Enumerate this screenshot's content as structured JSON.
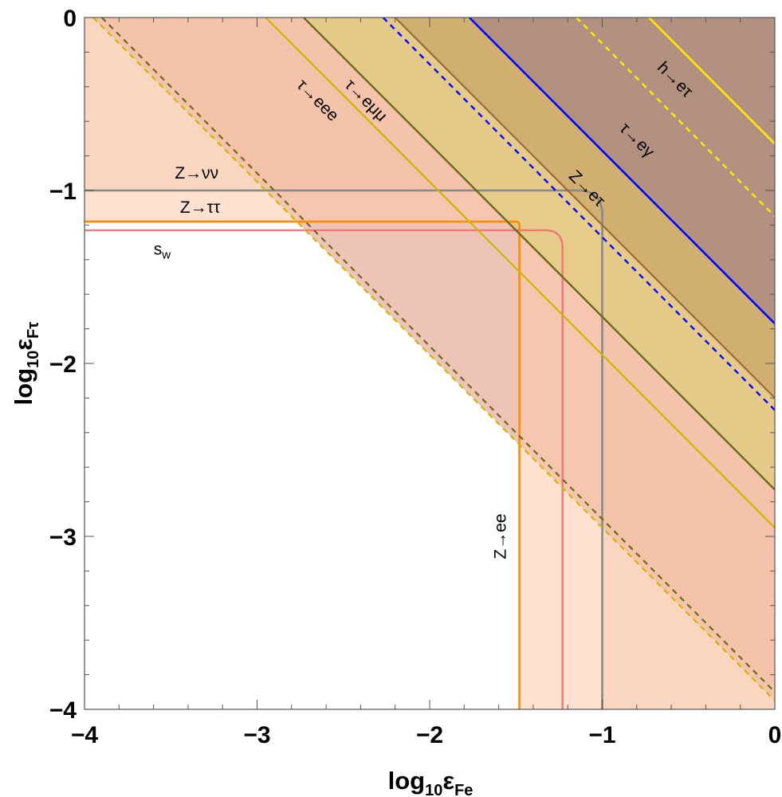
{
  "chart_data": {
    "type": "area",
    "x_label": "log₁₀εFe",
    "x_label_main": "log",
    "x_label_sub": "10",
    "x_label_eps": "ε",
    "x_label_eps_sub": "Fe",
    "y_label_main": "log",
    "y_label_sub": "10",
    "y_label_eps": "ε",
    "y_label_eps_sub": "Fτ",
    "xlim": [
      -4,
      0
    ],
    "ylim": [
      -4,
      0
    ],
    "x_ticks": [
      {
        "value": -4,
        "label": "−4"
      },
      {
        "value": -3,
        "label": "−3"
      },
      {
        "value": -2,
        "label": "−2"
      },
      {
        "value": -1,
        "label": "−1"
      },
      {
        "value": 0,
        "label": "0"
      }
    ],
    "y_ticks": [
      {
        "value": 0,
        "label": "0"
      },
      {
        "value": -1,
        "label": "−1"
      },
      {
        "value": -2,
        "label": "−2"
      },
      {
        "value": -3,
        "label": "−3"
      },
      {
        "value": -4,
        "label": "−4"
      }
    ],
    "regions": [
      {
        "name": "τ→eee",
        "kind": "diagonal",
        "sum": -3.95,
        "fill": "#e6ad9a",
        "opacity": 0.72
      },
      {
        "name": "Z→νν",
        "kind": "corner",
        "x0": -1.0,
        "y0": -1.0,
        "fill": "#e6ad9a",
        "opacity": 0.3
      },
      {
        "name": "Z→ττ / Z→ee",
        "kind": "corner",
        "x0": -1.48,
        "y0": -1.18,
        "fill": "#fdc9a8",
        "opacity": 0.55
      },
      {
        "name": "τ→eμμ",
        "kind": "diagonal",
        "sum": -2.73,
        "fill": "#d9cf6e",
        "opacity": 0.55
      },
      {
        "name": "Z→eτ",
        "kind": "diagonal",
        "sum": -2.2,
        "fill": "#b58a50",
        "opacity": 0.42
      },
      {
        "name": "τ→eγ",
        "kind": "diagonal",
        "sum": -1.77,
        "fill": "#7a5aa0",
        "opacity": 0.35
      }
    ],
    "series": [
      {
        "name": "Z→νν",
        "kind": "corner",
        "x0": -1.0,
        "y0": -1.0,
        "r": 0.14,
        "color": "#888888",
        "width": 2.6,
        "dash": false
      },
      {
        "name": "Z→ττ",
        "kind": "corner",
        "x0": -1.48,
        "y0": -1.18,
        "r": 0.02,
        "color": "#ff8c00",
        "width": 2.6,
        "dash": false
      },
      {
        "name": "s_w",
        "kind": "corner",
        "x0": -1.23,
        "y0": -1.23,
        "r": 0.1,
        "color": "#f07878",
        "width": 2.4,
        "dash": false
      },
      {
        "name": "τ→eee bound",
        "kind": "diagonal",
        "sum": -3.9,
        "color": "#6b6a1a",
        "width": 2.2,
        "dash": true
      },
      {
        "name": "τ→eee bound (alt)",
        "kind": "diagonal",
        "sum": -3.95,
        "color": "#c8b800",
        "width": 2.2,
        "dash": true
      },
      {
        "name": "τ→eμμ bound (alt)",
        "kind": "diagonal",
        "sum": -2.95,
        "color": "#c8b800",
        "width": 2.2,
        "dash": false
      },
      {
        "name": "τ→eμμ",
        "kind": "diagonal",
        "sum": -2.73,
        "color": "#6b6a1a",
        "width": 2.4,
        "dash": false
      },
      {
        "name": "Z→eτ",
        "kind": "diagonal",
        "sum": -2.2,
        "color": "#9b6a3a",
        "width": 2.2,
        "dash": false
      },
      {
        "name": "Z→eτ (dashed)",
        "kind": "diagonal",
        "sum": -2.27,
        "color": "#0000ff",
        "width": 2.4,
        "dash": true
      },
      {
        "name": "τ→eγ",
        "kind": "diagonal",
        "sum": -1.77,
        "color": "#0000ff",
        "width": 2.6,
        "dash": false
      },
      {
        "name": "h→eτ (dashed)",
        "kind": "diagonal",
        "sum": -1.15,
        "color": "#ffea00",
        "width": 2.4,
        "dash": true
      },
      {
        "name": "h→eτ",
        "kind": "diagonal",
        "sum": -0.73,
        "color": "#ffea00",
        "width": 2.6,
        "dash": false
      }
    ],
    "annotations": [
      {
        "text": "Z→νν",
        "x": -3.35,
        "y": -0.93,
        "rotate": 0
      },
      {
        "text": "Z→ττ",
        "x": -3.33,
        "y": -1.13,
        "rotate": 0
      },
      {
        "text": "s",
        "sub": "w",
        "x": -3.55,
        "y": -1.37,
        "rotate": 0
      },
      {
        "text": "τ→eee",
        "x": -2.67,
        "y": -0.5,
        "rotate": 45
      },
      {
        "text": "τ→eμμ",
        "x": -2.39,
        "y": -0.5,
        "rotate": 45
      },
      {
        "text": "Z→eτ",
        "x": -1.11,
        "y": -1.01,
        "rotate": 45
      },
      {
        "text": "τ→eγ",
        "x": -0.82,
        "y": -0.73,
        "rotate": 45
      },
      {
        "text": "h→eτ",
        "x": -0.6,
        "y": -0.38,
        "rotate": 45
      },
      {
        "text": "Z→ee",
        "x": -1.56,
        "y": -3.0,
        "rotate": -90
      }
    ]
  }
}
